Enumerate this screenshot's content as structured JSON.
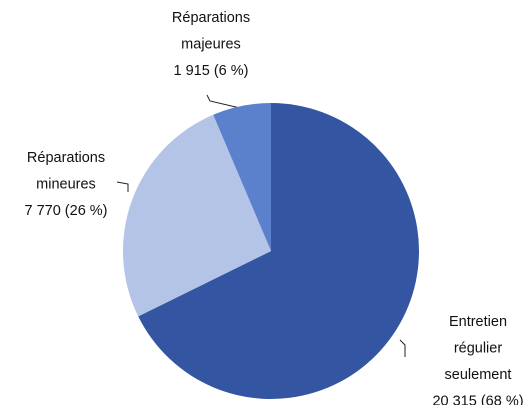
{
  "chart_data": {
    "type": "pie",
    "categories": [
      "Entretien régulier seulement",
      "Réparations mineures",
      "Réparations majeures"
    ],
    "values": [
      20315,
      7770,
      1915
    ],
    "value_labels": [
      "20 315 (68 %)",
      "7 770 (26 %)",
      "1 915 (6 %)"
    ],
    "colors": [
      "#3456a2",
      "#b4c4e7",
      "#5b80cc"
    ]
  }
}
